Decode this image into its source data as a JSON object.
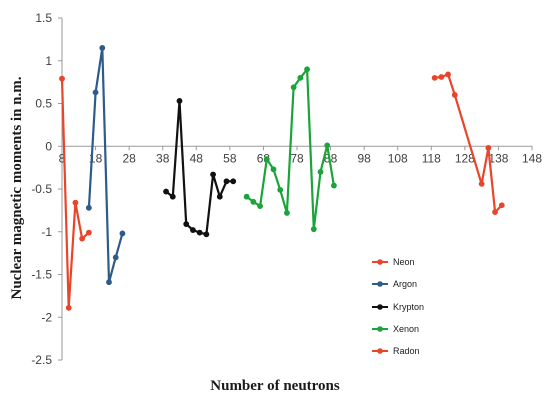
{
  "chart_data": {
    "type": "line",
    "title": "",
    "xlabel": "Number of neutrons",
    "ylabel": "Nuclear magnetic moments in n.m.",
    "xlim": [
      8,
      148
    ],
    "ylim": [
      -2.5,
      1.5
    ],
    "xticks": [
      8,
      18,
      28,
      38,
      48,
      58,
      68,
      78,
      88,
      98,
      108,
      118,
      128,
      138,
      148
    ],
    "yticks": [
      -2.5,
      -2,
      -1.5,
      -1,
      -0.5,
      0,
      0.5,
      1,
      1.5
    ],
    "xtick_labels": [
      "8",
      "18",
      "28",
      "38",
      "48",
      "58",
      "68",
      "78",
      "88",
      "98",
      "108",
      "118",
      "128",
      "138",
      "148"
    ],
    "ytick_labels": [
      "-2.5",
      "-2",
      "-1.5",
      "-1",
      "-0.5",
      "0",
      "0.5",
      "1",
      "1.5"
    ],
    "grid": false,
    "legend_position": "bottom-right",
    "series": [
      {
        "name": "Neon",
        "color": "#e8452a",
        "points": [
          [
            8,
            0.79
          ],
          [
            10,
            -1.89
          ],
          [
            12,
            -0.66
          ],
          [
            14,
            -1.08
          ],
          [
            16,
            -1.01
          ]
        ]
      },
      {
        "name": "Argon",
        "color": "#2e5b8a",
        "points": [
          [
            16,
            -0.72
          ],
          [
            18,
            0.63
          ],
          [
            20,
            1.15
          ],
          [
            22,
            -1.59
          ],
          [
            24,
            -1.3
          ],
          [
            26,
            -1.02
          ]
        ]
      },
      {
        "name": "Krypton",
        "color": "#111111",
        "points": [
          [
            39,
            -0.53
          ],
          [
            41,
            -0.59
          ],
          [
            43,
            0.53
          ],
          [
            45,
            -0.91
          ],
          [
            47,
            -0.98
          ],
          [
            49,
            -1.01
          ],
          [
            51,
            -1.03
          ],
          [
            53,
            -0.33
          ],
          [
            55,
            -0.59
          ],
          [
            57,
            -0.41
          ],
          [
            59,
            -0.41
          ]
        ]
      },
      {
        "name": "Xenon",
        "color": "#1aa43a",
        "points": [
          [
            63,
            -0.59
          ],
          [
            65,
            -0.65
          ],
          [
            67,
            -0.7
          ],
          [
            69,
            -0.15
          ],
          [
            71,
            -0.27
          ],
          [
            73,
            -0.51
          ],
          [
            75,
            -0.78
          ],
          [
            77,
            0.69
          ],
          [
            79,
            0.8
          ],
          [
            81,
            0.9
          ],
          [
            83,
            -0.97
          ],
          [
            85,
            -0.3
          ],
          [
            87,
            0.01
          ],
          [
            89,
            -0.46
          ]
        ]
      },
      {
        "name": "Radon",
        "color": "#e8452a",
        "points": [
          [
            119,
            0.8
          ],
          [
            121,
            0.81
          ],
          [
            123,
            0.84
          ],
          [
            125,
            0.6
          ],
          [
            133,
            -0.44
          ],
          [
            135,
            -0.02
          ],
          [
            137,
            -0.77
          ],
          [
            139,
            -0.69
          ]
        ]
      }
    ]
  }
}
